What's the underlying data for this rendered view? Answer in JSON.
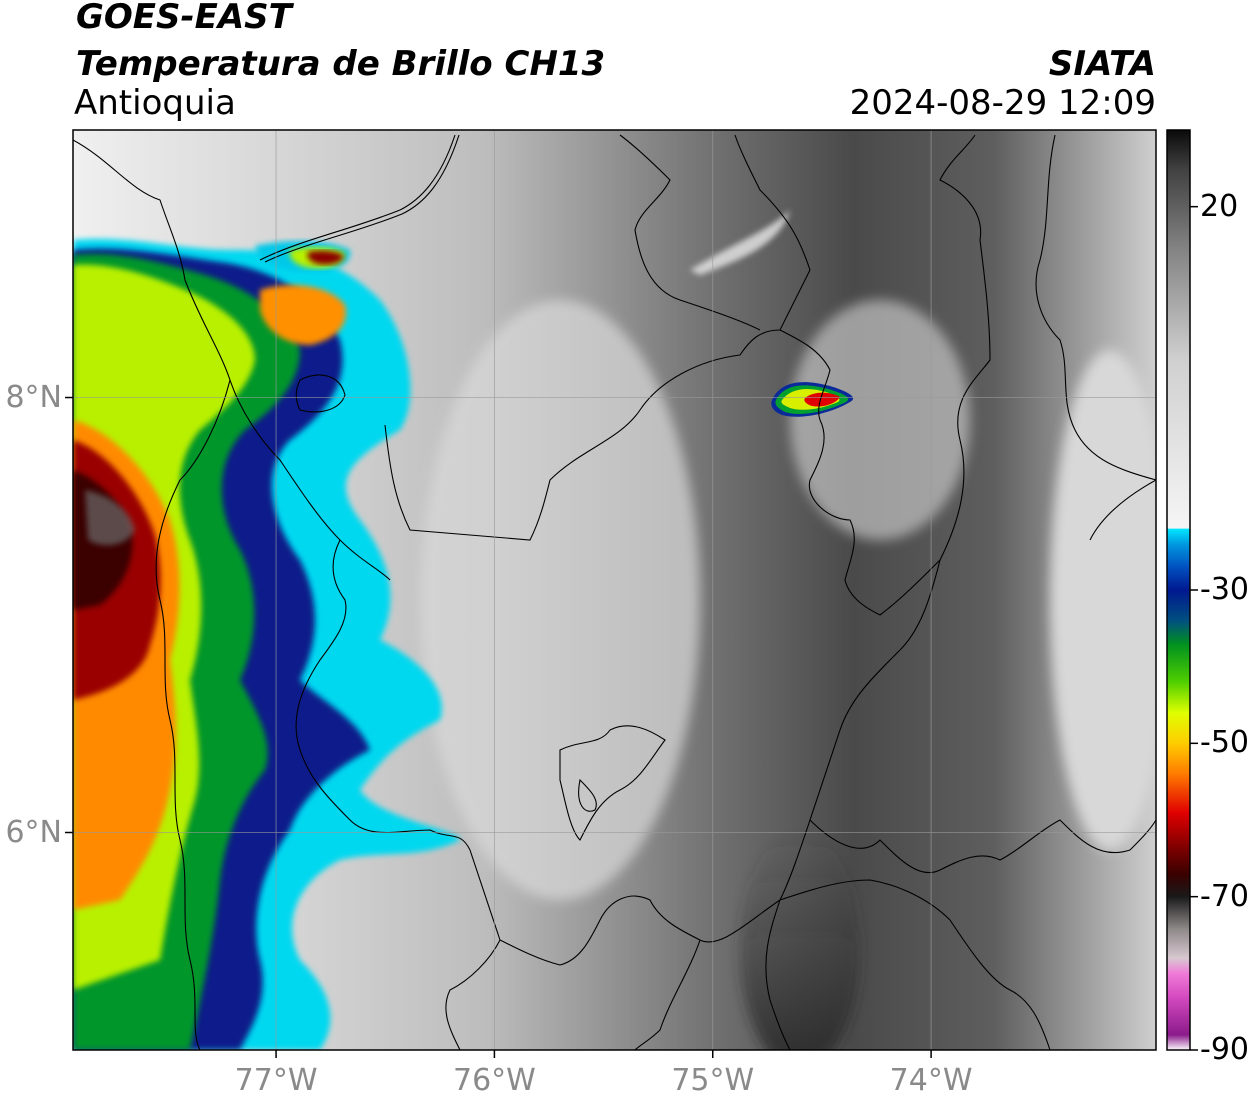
{
  "header": {
    "satellite": "GOES-EAST",
    "product": "Temperatura de Brillo CH13",
    "region": "Antioquia",
    "agency": "SIATA",
    "datetime": "2024-08-29 12:09"
  },
  "axes": {
    "lon_ticks": [
      {
        "value": -77,
        "label": "77°W"
      },
      {
        "value": -76,
        "label": "76°W"
      },
      {
        "value": -75,
        "label": "75°W"
      },
      {
        "value": -74,
        "label": "74°W"
      }
    ],
    "lat_ticks": [
      {
        "value": 8,
        "label": "8°N"
      },
      {
        "value": 6,
        "label": "6°N"
      }
    ],
    "lon_range": [
      -77.93,
      -72.97
    ],
    "lat_range": [
      5.0,
      9.23
    ],
    "grid": true
  },
  "colorbar": {
    "range": [
      -90,
      30
    ],
    "ticks": [
      {
        "value": 20,
        "label": "20"
      },
      {
        "value": -30,
        "label": "-30"
      },
      {
        "value": -50,
        "label": "-50"
      },
      {
        "value": -70,
        "label": "-70"
      },
      {
        "value": -90,
        "label": "-90"
      }
    ],
    "stops": [
      {
        "t": -90,
        "color": "#ffffff"
      },
      {
        "t": -88,
        "color": "#8b1a8b"
      },
      {
        "t": -83,
        "color": "#d44bc0"
      },
      {
        "t": -80,
        "color": "#f07ad8"
      },
      {
        "t": -78,
        "color": "#d8c8d0"
      },
      {
        "t": -74,
        "color": "#8a8585"
      },
      {
        "t": -70,
        "color": "#1a1a1a"
      },
      {
        "t": -67,
        "color": "#3a0000"
      },
      {
        "t": -63,
        "color": "#8b0000"
      },
      {
        "t": -59,
        "color": "#e00000"
      },
      {
        "t": -54,
        "color": "#ff7a00"
      },
      {
        "t": -50,
        "color": "#ffcc00"
      },
      {
        "t": -46,
        "color": "#e0ff00"
      },
      {
        "t": -42,
        "color": "#50d000"
      },
      {
        "t": -37,
        "color": "#009020"
      },
      {
        "t": -34,
        "color": "#005080"
      },
      {
        "t": -30,
        "color": "#001890"
      },
      {
        "t": -27,
        "color": "#0050c0"
      },
      {
        "t": -24,
        "color": "#0098e0"
      },
      {
        "t": -22,
        "color": "#00e8ff"
      },
      {
        "t": -21.9,
        "color": "#f5f5f5"
      },
      {
        "t": 0,
        "color": "#d0d0d0"
      },
      {
        "t": 15,
        "color": "#808080"
      },
      {
        "t": 25,
        "color": "#404040"
      },
      {
        "t": 30,
        "color": "#0a0a0a"
      }
    ]
  }
}
